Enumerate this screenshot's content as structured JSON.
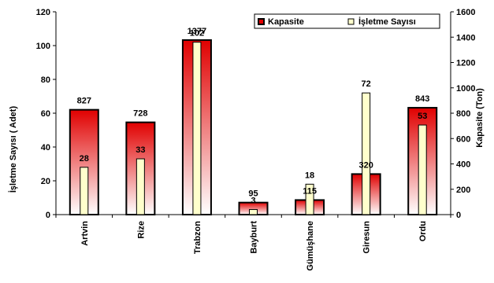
{
  "chart_data": {
    "type": "bar",
    "categories": [
      "Artvin",
      "Rize",
      "Trabzon",
      "Bayburt",
      "Gümüşhane",
      "Giresun",
      "Ordu"
    ],
    "series": [
      {
        "name": "Kapasite",
        "axis": "right",
        "color": "#e00000",
        "values": [
          827,
          728,
          1377,
          95,
          115,
          320,
          843
        ]
      },
      {
        "name": "İşletme Sayısı",
        "axis": "left",
        "color": "#ffffcc",
        "values": [
          28,
          33,
          102,
          3,
          18,
          72,
          53
        ]
      }
    ],
    "ylabel": "İşletme Sayısı ( Adet)",
    "y2label": "Kapasite (Ton)",
    "ylim": [
      0,
      120
    ],
    "y2lim": [
      0,
      1600
    ],
    "yticks": [
      "0",
      "20",
      "40",
      "60",
      "80",
      "100",
      "120"
    ],
    "y2ticks": [
      "0",
      "200",
      "400",
      "600",
      "800",
      "1000",
      "1200",
      "1400",
      "1600"
    ],
    "legend_placement": "top-right",
    "grid": false
  }
}
